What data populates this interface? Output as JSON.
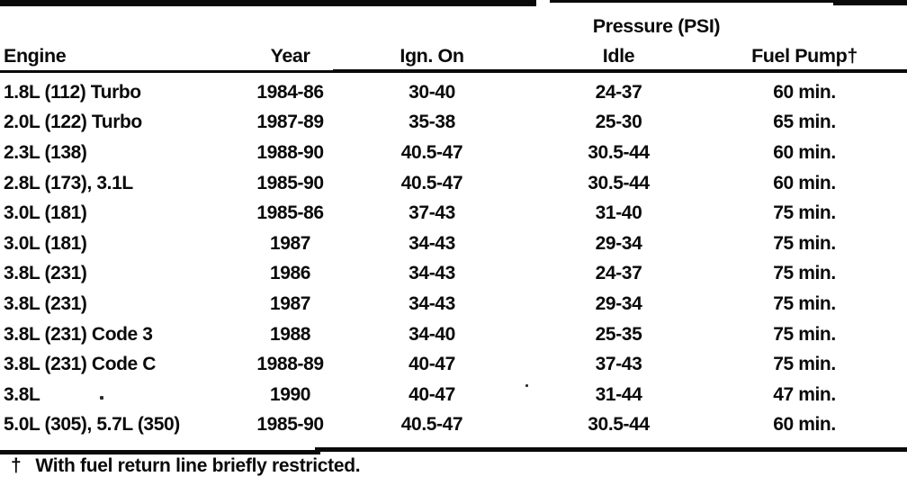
{
  "colors": {
    "ink": "#0a0a0a",
    "paper": "#ffffff"
  },
  "table": {
    "group_header": "Pressure (PSI)",
    "columns": [
      "Engine",
      "Year",
      "Ign. On",
      "Idle",
      "Fuel Pump†"
    ],
    "rows": [
      [
        "1.8L (112) Turbo",
        "1984-86",
        "30-40",
        "24-37",
        "60 min."
      ],
      [
        "2.0L (122) Turbo",
        "1987-89",
        "35-38",
        "25-30",
        "65 min."
      ],
      [
        "2.3L (138)",
        "1988-90",
        "40.5-47",
        "30.5-44",
        "60 min."
      ],
      [
        "2.8L (173), 3.1L",
        "1985-90",
        "40.5-47",
        "30.5-44",
        "60 min."
      ],
      [
        "3.0L (181)",
        "1985-86",
        "37-43",
        "31-40",
        "75 min."
      ],
      [
        "3.0L (181)",
        "1987",
        "34-43",
        "29-34",
        "75 min."
      ],
      [
        "3.8L (231)",
        "1986",
        "34-43",
        "24-37",
        "75 min."
      ],
      [
        "3.8L (231)",
        "1987",
        "34-43",
        "29-34",
        "75 min."
      ],
      [
        "3.8L (231) Code 3",
        "1988",
        "34-40",
        "25-35",
        "75 min."
      ],
      [
        "3.8L (231) Code C",
        "1988-89",
        "40-47",
        "37-43",
        "75 min."
      ],
      [
        "3.8L",
        "1990",
        "40-47",
        "31-44",
        "47 min."
      ],
      [
        "5.0L (305), 5.7L (350)",
        "1985-90",
        "40.5-47",
        "30.5-44",
        "60 min."
      ]
    ]
  },
  "footnote": {
    "symbol": "†",
    "text": "With fuel return line briefly restricted."
  }
}
